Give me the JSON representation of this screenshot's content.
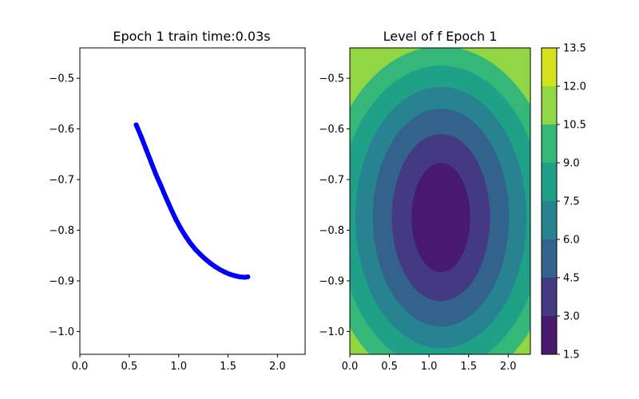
{
  "chart_data": [
    {
      "type": "scatter",
      "title": "Epoch 1 train time:0.03s",
      "xlabel": "",
      "ylabel": "",
      "xlim": [
        0.0,
        2.28
      ],
      "ylim": [
        -1.045,
        -0.44
      ],
      "xticks": [
        0.0,
        0.5,
        1.0,
        1.5,
        2.0
      ],
      "xtick_labels": [
        "0.0",
        "0.5",
        "1.0",
        "1.5",
        "2.0"
      ],
      "yticks": [
        -1.0,
        -0.9,
        -0.8,
        -0.7,
        -0.6,
        -0.5
      ],
      "ytick_labels": [
        "−1.0",
        "−0.9",
        "−0.8",
        "−0.7",
        "−0.6",
        "−0.5"
      ],
      "grid": false,
      "series": [
        {
          "color": "#0000ff",
          "points": [
            [
              0.57,
              -0.592
            ],
            [
              0.62,
              -0.615
            ],
            [
              0.67,
              -0.64
            ],
            [
              0.72,
              -0.665
            ],
            [
              0.77,
              -0.69
            ],
            [
              0.82,
              -0.712
            ],
            [
              0.87,
              -0.735
            ],
            [
              0.92,
              -0.757
            ],
            [
              0.97,
              -0.778
            ],
            [
              1.02,
              -0.796
            ],
            [
              1.07,
              -0.812
            ],
            [
              1.12,
              -0.826
            ],
            [
              1.17,
              -0.838
            ],
            [
              1.22,
              -0.848
            ],
            [
              1.27,
              -0.857
            ],
            [
              1.32,
              -0.865
            ],
            [
              1.37,
              -0.872
            ],
            [
              1.42,
              -0.878
            ],
            [
              1.47,
              -0.883
            ],
            [
              1.52,
              -0.887
            ],
            [
              1.57,
              -0.89
            ],
            [
              1.62,
              -0.892
            ],
            [
              1.67,
              -0.893
            ],
            [
              1.7,
              -0.892
            ]
          ]
        }
      ]
    },
    {
      "type": "heatmap",
      "subtype": "filled-contour",
      "title": "Level of f Epoch 1",
      "xlim": [
        0.0,
        2.28
      ],
      "ylim": [
        -1.045,
        -0.44
      ],
      "xticks": [
        0.0,
        0.5,
        1.0,
        1.5,
        2.0
      ],
      "xtick_labels": [
        "0.0",
        "0.5",
        "1.0",
        "1.5",
        "2.0"
      ],
      "yticks": [
        -1.0,
        -0.9,
        -0.8,
        -0.7,
        -0.6,
        -0.5
      ],
      "ytick_labels": [
        "−1.0",
        "−0.9",
        "−0.8",
        "−0.7",
        "−0.6",
        "−0.5"
      ],
      "center": [
        1.15,
        -0.775
      ],
      "levels": [
        1.5,
        3.0,
        4.5,
        6.0,
        7.5,
        9.0,
        10.5,
        12.0,
        13.5
      ],
      "level_labels": [
        "1.5",
        "3.0",
        "4.5",
        "6.0",
        "7.5",
        "9.0",
        "10.5",
        "12.0",
        "13.5"
      ],
      "band_colors": [
        "#471a6d",
        "#443a83",
        "#33638d",
        "#26838f",
        "#1fa187",
        "#35b779",
        "#90d743",
        "#d3e21a"
      ],
      "contour_semi_axes": [
        {
          "level": 3.0,
          "a": 0.37,
          "b": 0.108
        },
        {
          "level": 4.5,
          "a": 0.62,
          "b": 0.165
        },
        {
          "level": 6.0,
          "a": 0.86,
          "b": 0.215
        },
        {
          "level": 7.5,
          "a": 1.08,
          "b": 0.258
        },
        {
          "level": 9.0,
          "a": 1.3,
          "b": 0.3
        },
        {
          "level": 10.5,
          "a": 1.5,
          "b": 0.338
        },
        {
          "level": 12.0,
          "a": 1.7,
          "b": 0.375
        }
      ],
      "colorbar": true
    }
  ]
}
